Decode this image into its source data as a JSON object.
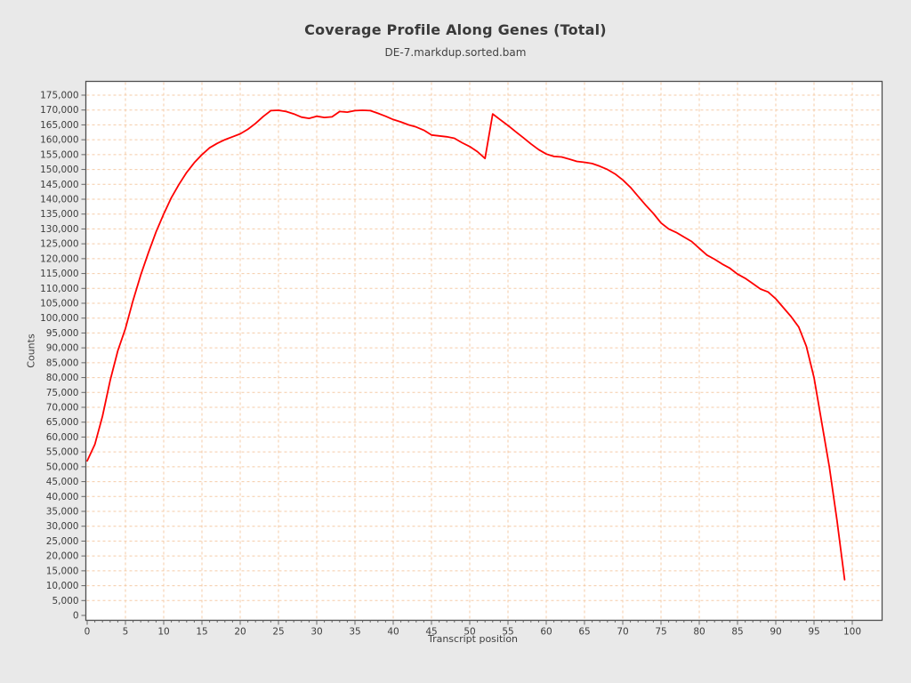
{
  "window": {
    "background_color": "#e9e9e9"
  },
  "chart_data": {
    "type": "line",
    "title": "Coverage Profile Along Genes (Total)",
    "subtitle": "DE-7.markdup.sorted.bam",
    "xlabel": "Transcript position",
    "ylabel": "Counts",
    "xlim": [
      0,
      100
    ],
    "ylim": [
      0,
      175000
    ],
    "xticks": [
      0,
      5,
      10,
      15,
      20,
      25,
      30,
      35,
      40,
      45,
      50,
      55,
      60,
      65,
      70,
      75,
      80,
      85,
      90,
      95,
      100
    ],
    "ytick_step": 5000,
    "ytick_max": 175000,
    "grid": true,
    "legend_position": "none",
    "colors": {
      "line": "#ff0000",
      "plot_background": "#ffffff",
      "grid": "#f5cba7",
      "border": "#4f4f4f",
      "tick_text": "#3d3d3d",
      "tick_mark": "#666666"
    },
    "series": [
      {
        "name": "Total coverage",
        "x": [
          0,
          1,
          2,
          3,
          4,
          5,
          6,
          7,
          8,
          9,
          10,
          11,
          12,
          13,
          14,
          15,
          16,
          17,
          18,
          19,
          20,
          21,
          22,
          23,
          24,
          25,
          26,
          27,
          28,
          29,
          30,
          31,
          32,
          33,
          34,
          35,
          36,
          37,
          38,
          39,
          40,
          41,
          42,
          43,
          44,
          45,
          46,
          47,
          48,
          49,
          50,
          51,
          52,
          53,
          54,
          55,
          56,
          57,
          58,
          59,
          60,
          61,
          62,
          63,
          64,
          65,
          66,
          67,
          68,
          69,
          70,
          71,
          72,
          73,
          74,
          75,
          76,
          77,
          78,
          79,
          80,
          81,
          82,
          83,
          84,
          85,
          86,
          87,
          88,
          89,
          90,
          91,
          92,
          93,
          94,
          95,
          96,
          97,
          98,
          99
        ],
        "y": [
          52000,
          57500,
          67000,
          79000,
          89000,
          96500,
          106000,
          114500,
          122000,
          129000,
          135000,
          140500,
          145000,
          149000,
          152300,
          155000,
          157300,
          158800,
          160000,
          161000,
          162000,
          163500,
          165500,
          167800,
          169800,
          169900,
          169500,
          168700,
          167600,
          167200,
          167900,
          167500,
          167700,
          169500,
          169300,
          169800,
          169900,
          169800,
          168900,
          167900,
          166800,
          166000,
          165000,
          164300,
          163200,
          161600,
          161300,
          161000,
          160500,
          159000,
          157700,
          156000,
          153700,
          168700,
          166700,
          164800,
          162700,
          160700,
          158600,
          156700,
          155200,
          154400,
          154200,
          153500,
          152700,
          152400,
          152000,
          151100,
          150000,
          148500,
          146500,
          144000,
          141000,
          138000,
          135200,
          132000,
          130000,
          128800,
          127300,
          125800,
          123500,
          121200,
          119800,
          118200,
          116800,
          114800,
          113400,
          111600,
          109800,
          108800,
          106500,
          103500,
          100500,
          97000,
          90500,
          80000,
          65000,
          50000,
          32000,
          12000
        ]
      }
    ]
  }
}
